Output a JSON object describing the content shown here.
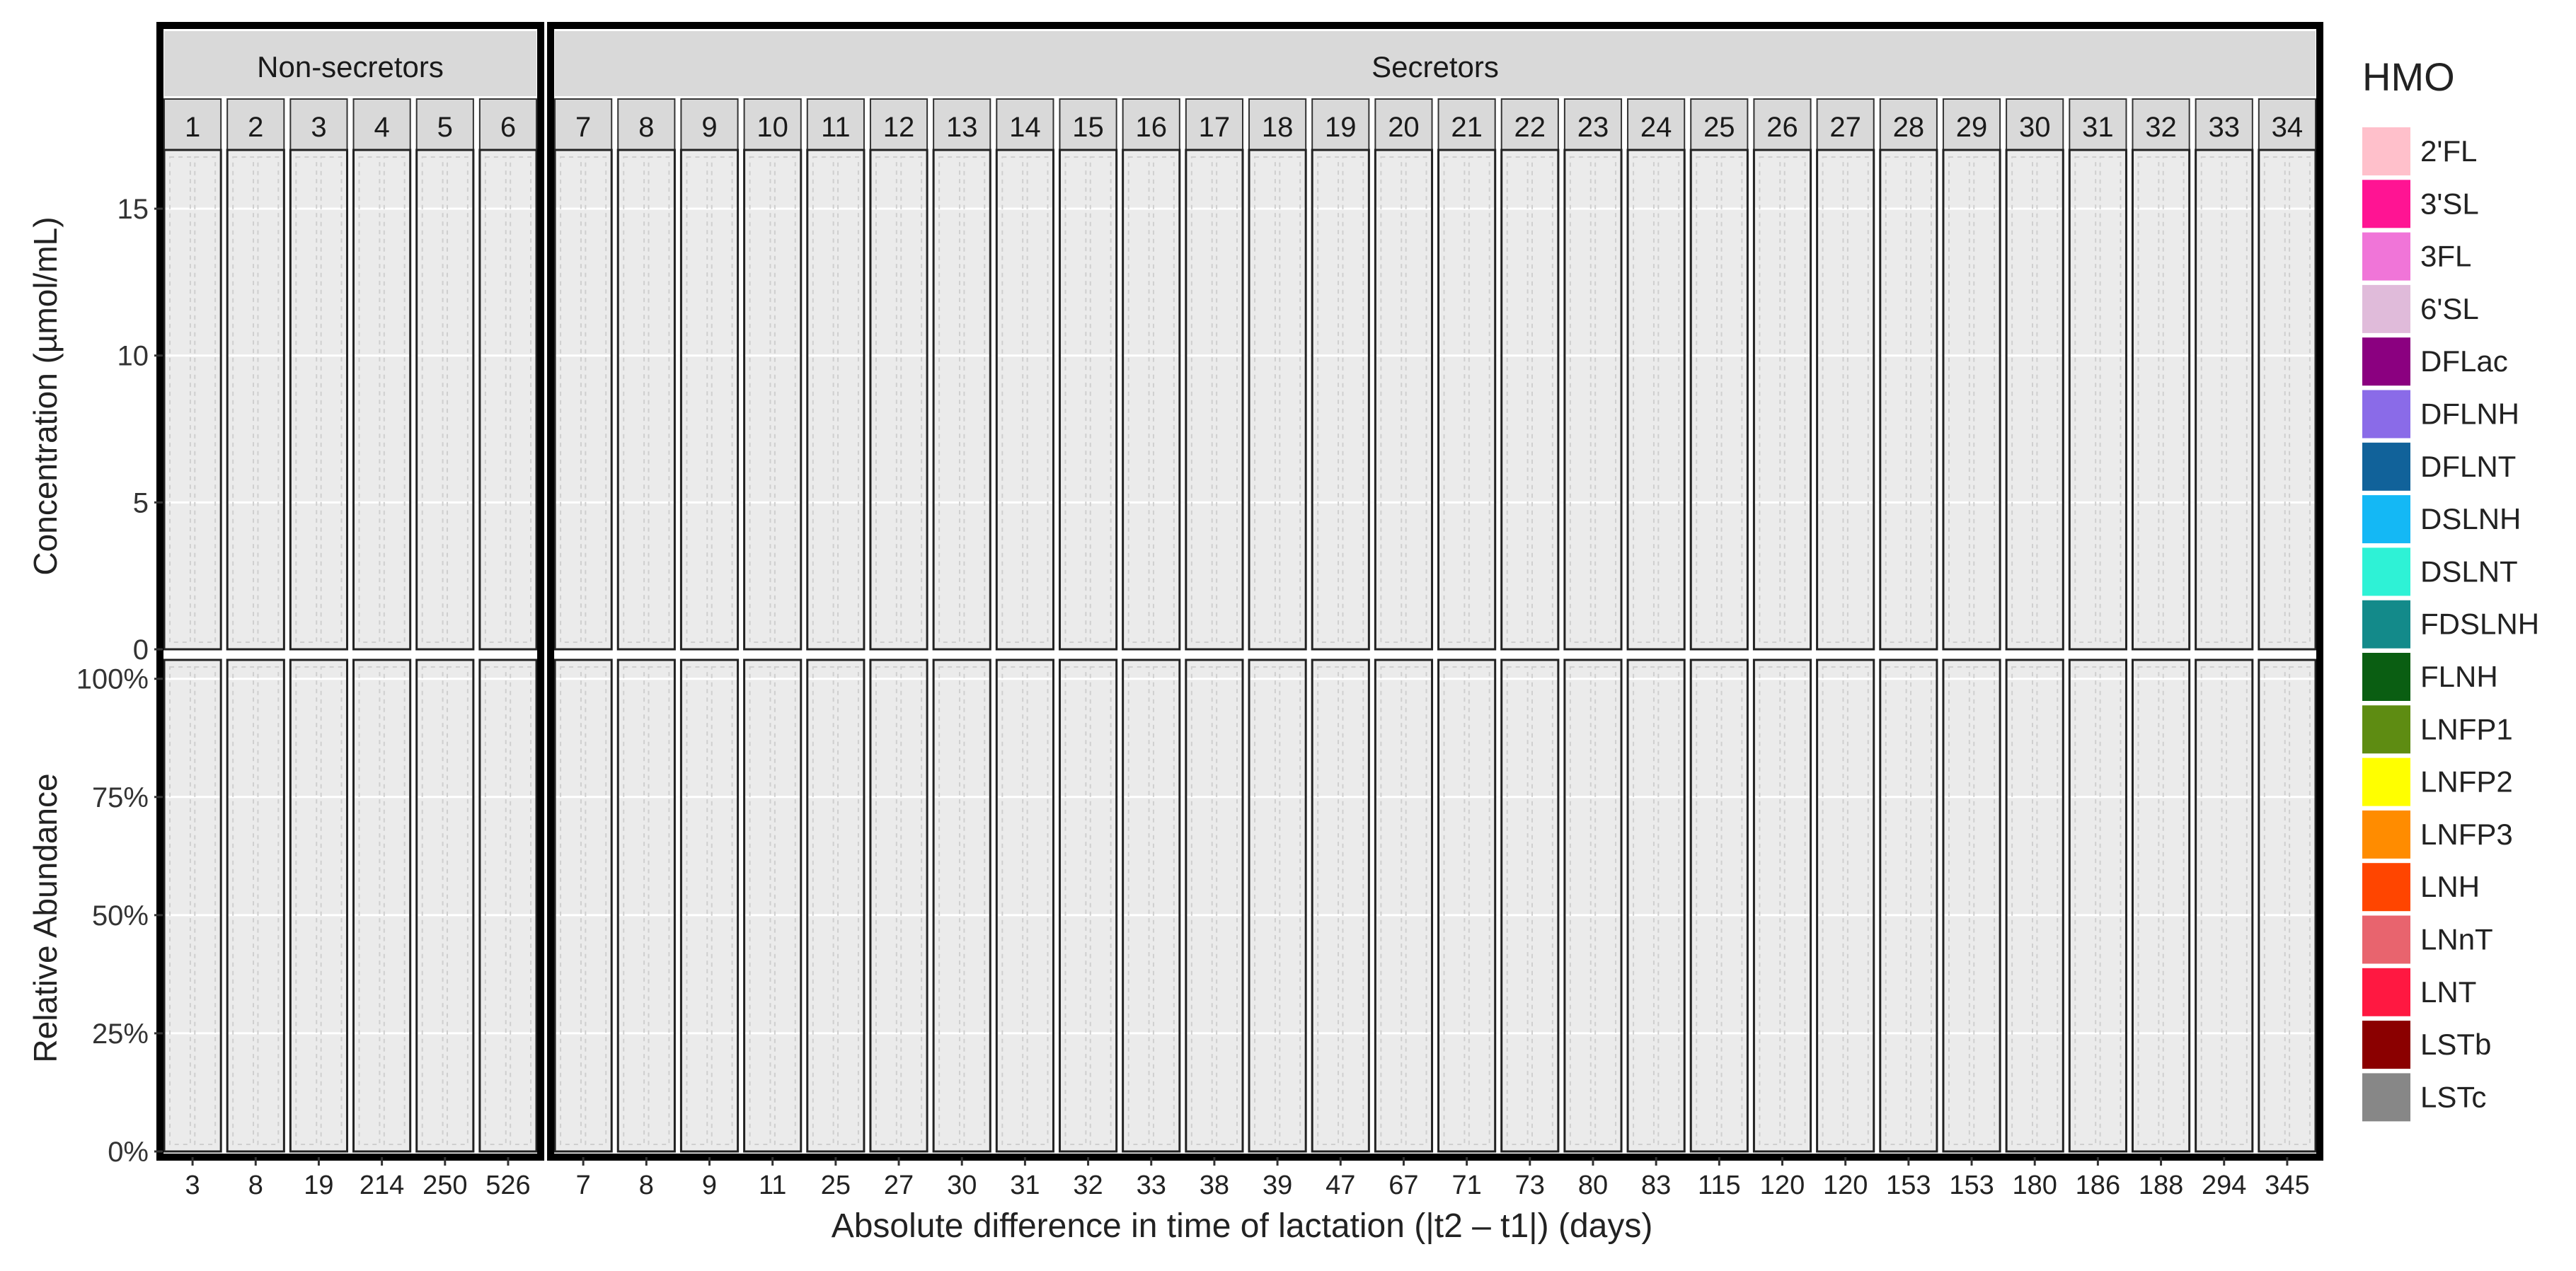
{
  "chart_data": {
    "type": "bar",
    "xlabel": "Absolute difference in time of lactation (|t2 – t1|) (days)",
    "groups": [
      {
        "label": "Non-secretors",
        "participants": [
          1,
          2,
          3,
          4,
          5,
          6
        ]
      },
      {
        "label": "Secretors",
        "participants": [
          7,
          8,
          9,
          10,
          11,
          12,
          13,
          14,
          15,
          16,
          17,
          18,
          19,
          20,
          21,
          22,
          23,
          24,
          25,
          26,
          27,
          28,
          29,
          30,
          31,
          32,
          33,
          34
        ]
      }
    ],
    "x_days": [
      "3",
      "8",
      "19",
      "214",
      "250",
      "526",
      "7",
      "8",
      "9",
      "11",
      "25",
      "27",
      "30",
      "31",
      "32",
      "33",
      "38",
      "39",
      "47",
      "67",
      "71",
      "73",
      "80",
      "83",
      "115",
      "120",
      "120",
      "153",
      "153",
      "180",
      "186",
      "188",
      "294",
      "345"
    ],
    "panels": [
      {
        "ylabel": "Concentration (µmol/mL)",
        "ylim": [
          0,
          17
        ],
        "ticks": [
          0,
          5,
          10,
          15
        ],
        "tick_labels": [
          "0",
          "5",
          "10",
          "15"
        ]
      },
      {
        "ylabel": "Relative Abundance",
        "ylim": [
          0,
          1.04
        ],
        "ticks": [
          0,
          0.25,
          0.5,
          0.75,
          1.0
        ],
        "tick_labels": [
          "0%",
          "25%",
          "50%",
          "75%",
          "100%"
        ]
      }
    ],
    "legend": {
      "title": "HMO",
      "placement": "right"
    },
    "series": [
      {
        "name": "2'FL",
        "color": "#FFC0CB"
      },
      {
        "name": "3'SL",
        "color": "#FF1493"
      },
      {
        "name": "3FL",
        "color": "#F075D8"
      },
      {
        "name": "6'SL",
        "color": "#E0BBDA"
      },
      {
        "name": "DFLac",
        "color": "#8B0080"
      },
      {
        "name": "DFLNH",
        "color": "#8A6BE8"
      },
      {
        "name": "DFLNT",
        "color": "#11629A"
      },
      {
        "name": "DSLNH",
        "color": "#14B8F5"
      },
      {
        "name": "DSLNT",
        "color": "#2EF2D6"
      },
      {
        "name": "FDSLNH",
        "color": "#138A8A"
      },
      {
        "name": "FLNH",
        "color": "#0A5E12"
      },
      {
        "name": "LNFP1",
        "color": "#5E8C12"
      },
      {
        "name": "LNFP2",
        "color": "#FFFF00"
      },
      {
        "name": "LNFP3",
        "color": "#FF8C00"
      },
      {
        "name": "LNH",
        "color": "#FF4500"
      },
      {
        "name": "LNnT",
        "color": "#E8646E"
      },
      {
        "name": "LNT",
        "color": "#FF1841"
      },
      {
        "name": "LSTb",
        "color": "#8B0000"
      },
      {
        "name": "LSTc",
        "color": "#878787"
      }
    ]
  }
}
